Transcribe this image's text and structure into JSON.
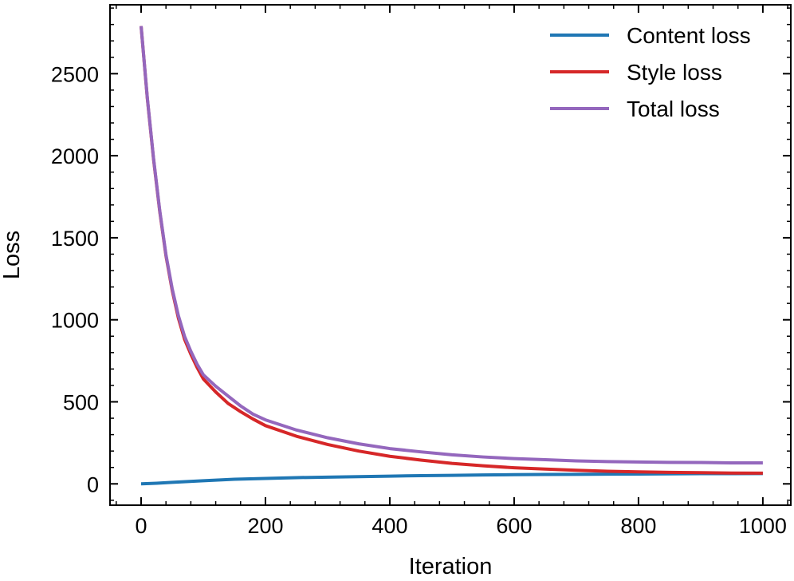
{
  "chart_data": {
    "type": "line",
    "title": "",
    "xlabel": "Iteration",
    "ylabel": "Loss",
    "xlim": [
      -50,
      1045
    ],
    "ylim": [
      -130,
      2920
    ],
    "xticks": [
      0,
      200,
      400,
      600,
      800,
      1000
    ],
    "yticks": [
      0,
      500,
      1000,
      1500,
      2000,
      2500
    ],
    "legend_position": "top-right",
    "grid": false,
    "series": [
      {
        "name": "Content loss",
        "color": "#1f77b4",
        "x": [
          0,
          25,
          50,
          75,
          100,
          150,
          200,
          250,
          300,
          350,
          400,
          450,
          500,
          550,
          600,
          650,
          700,
          750,
          800,
          850,
          900,
          950,
          1000
        ],
        "y": [
          0,
          4,
          9,
          14,
          19,
          28,
          33,
          38,
          41,
          44,
          47,
          50,
          52,
          54,
          56,
          57,
          58,
          59,
          60,
          61,
          62,
          62,
          63
        ]
      },
      {
        "name": "Style loss",
        "color": "#d62728",
        "x": [
          0,
          10,
          20,
          30,
          40,
          50,
          60,
          70,
          80,
          90,
          100,
          120,
          140,
          160,
          180,
          200,
          250,
          300,
          350,
          400,
          450,
          500,
          550,
          600,
          650,
          700,
          750,
          800,
          850,
          900,
          950,
          1000
        ],
        "y": [
          2790,
          2350,
          1980,
          1660,
          1390,
          1180,
          1010,
          880,
          790,
          710,
          640,
          560,
          490,
          440,
          395,
          355,
          290,
          240,
          200,
          168,
          145,
          125,
          110,
          98,
          90,
          83,
          77,
          73,
          70,
          68,
          66,
          65
        ]
      },
      {
        "name": "Total loss",
        "color": "#9467bd",
        "x": [
          0,
          10,
          20,
          30,
          40,
          50,
          60,
          70,
          80,
          90,
          100,
          120,
          140,
          160,
          180,
          200,
          250,
          300,
          350,
          400,
          450,
          500,
          550,
          600,
          650,
          700,
          750,
          800,
          850,
          900,
          950,
          1000
        ],
        "y": [
          2790,
          2354,
          1985,
          1666,
          1397,
          1190,
          1025,
          898,
          808,
          730,
          665,
          595,
          535,
          475,
          425,
          390,
          328,
          281,
          244,
          215,
          195,
          177,
          164,
          154,
          147,
          140,
          136,
          133,
          131,
          130,
          128,
          128
        ]
      }
    ]
  }
}
